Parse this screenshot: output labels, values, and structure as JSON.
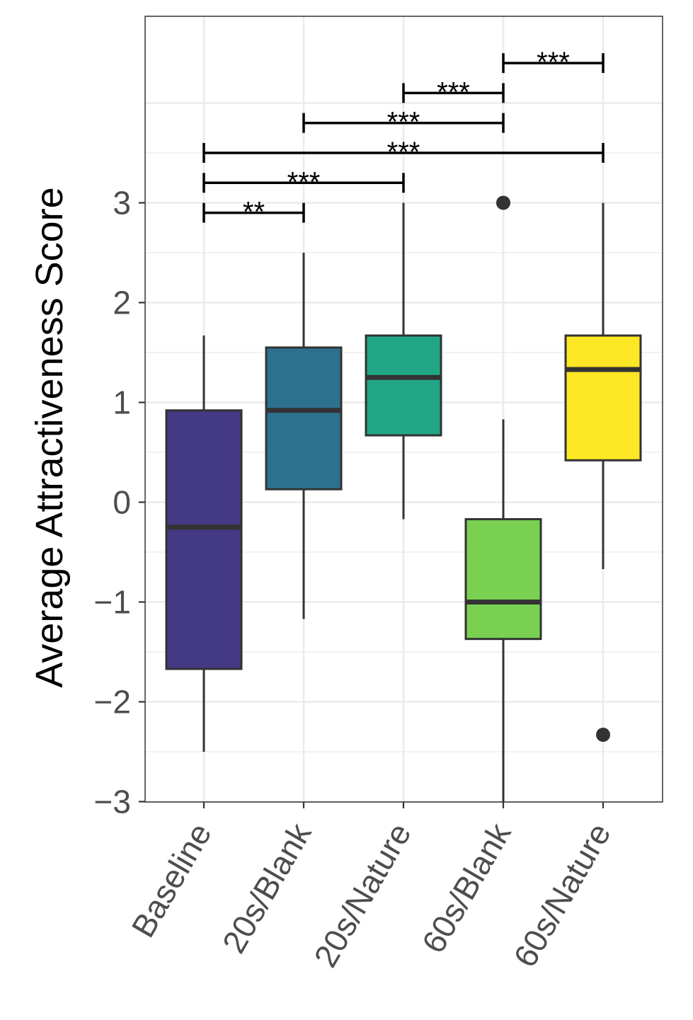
{
  "chart_data": {
    "type": "box",
    "title": "",
    "xlabel": "",
    "ylabel": "Average Attractiveness Score",
    "ylim": [
      -3,
      4
    ],
    "yticks": [
      -3,
      -2,
      -1,
      0,
      1,
      2,
      3
    ],
    "grid": true,
    "categories": [
      "Baseline",
      "20s/Blank",
      "20s/Nature",
      "60s/Blank",
      "60s/Nature"
    ],
    "colors": [
      "#443983",
      "#2c728e",
      "#21a685",
      "#7ad151",
      "#fde725"
    ],
    "boxes": [
      {
        "category": "Baseline",
        "whisker_low": -2.5,
        "q1": -1.67,
        "median": -0.25,
        "q3": 0.92,
        "whisker_high": 1.67,
        "outliers": []
      },
      {
        "category": "20s/Blank",
        "whisker_low": -1.17,
        "q1": 0.13,
        "median": 0.92,
        "q3": 1.55,
        "whisker_high": 2.5,
        "outliers": []
      },
      {
        "category": "20s/Nature",
        "whisker_low": -0.17,
        "q1": 0.67,
        "median": 1.25,
        "q3": 1.67,
        "whisker_high": 3.0,
        "outliers": []
      },
      {
        "category": "60s/Blank",
        "whisker_low": -3.0,
        "q1": -1.37,
        "median": -1.0,
        "q3": -0.17,
        "whisker_high": 0.83,
        "outliers": [
          3.0
        ]
      },
      {
        "category": "60s/Nature",
        "whisker_low": -0.67,
        "q1": 0.42,
        "median": 1.33,
        "q3": 1.67,
        "whisker_high": 3.0,
        "outliers": [
          -2.33
        ]
      }
    ],
    "significance": [
      {
        "from": "Baseline",
        "to": "20s/Blank",
        "y": 2.9,
        "label": "**"
      },
      {
        "from": "Baseline",
        "to": "20s/Nature",
        "y": 3.2,
        "label": "***"
      },
      {
        "from": "Baseline",
        "to": "60s/Nature",
        "y": 3.5,
        "label": "***"
      },
      {
        "from": "20s/Blank",
        "to": "60s/Blank",
        "y": 3.8,
        "label": "***"
      },
      {
        "from": "20s/Nature",
        "to": "60s/Blank",
        "y": 4.1,
        "label": "***"
      },
      {
        "from": "60s/Blank",
        "to": "60s/Nature",
        "y": 4.4,
        "label": "***"
      }
    ]
  }
}
